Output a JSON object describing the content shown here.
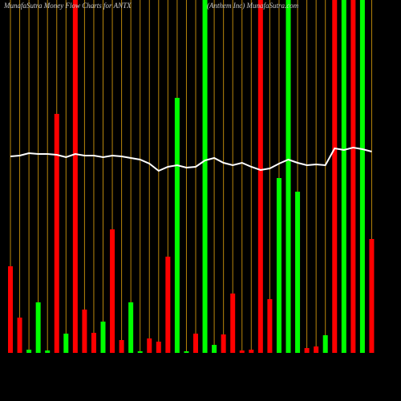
{
  "chart_data": {
    "type": "bar",
    "title": "MunafaSutra  Money Flow  Charts for ANTX",
    "subtitle": "(Anthem Inc) MunafaSutra.com",
    "ylim": [
      0,
      440
    ],
    "grid": true,
    "grid_color": "#b8860b",
    "series": [
      {
        "type": "bar",
        "values": [
          108,
          44,
          4,
          63,
          3,
          298,
          24,
          440,
          54,
          25,
          39,
          154,
          16,
          63,
          2,
          18,
          14,
          120,
          318,
          2,
          24,
          440,
          10,
          23,
          74,
          3,
          4,
          440,
          67,
          218,
          440,
          201,
          6,
          8,
          22,
          440,
          440,
          440,
          440,
          142
        ],
        "colors": [
          "#ff0000",
          "#ff0000",
          "#00ff00",
          "#00ff00",
          "#00ff00",
          "#ff0000",
          "#00ff00",
          "#ff0000",
          "#ff0000",
          "#ff0000",
          "#00ff00",
          "#ff0000",
          "#ff0000",
          "#00ff00",
          "#00ff00",
          "#ff0000",
          "#ff0000",
          "#ff0000",
          "#00ff00",
          "#00ff00",
          "#ff0000",
          "#00ff00",
          "#00ff00",
          "#ff0000",
          "#ff0000",
          "#ff0000",
          "#ff0000",
          "#ff0000",
          "#ff0000",
          "#00ff00",
          "#00ff00",
          "#00ff00",
          "#ff0000",
          "#ff0000",
          "#00ff00",
          "#ff0000",
          "#00ff00",
          "#ff0000",
          "#00ff00",
          "#ff0000"
        ]
      },
      {
        "type": "line",
        "color": "#ffffff",
        "values": [
          245,
          246,
          249,
          248,
          248,
          247,
          244,
          248,
          246,
          246,
          244,
          246,
          245,
          243,
          241,
          236,
          227,
          232,
          234,
          231,
          232,
          240,
          243,
          237,
          234,
          237,
          232,
          228,
          230,
          236,
          241,
          237,
          234,
          235,
          234,
          255,
          253,
          256,
          254,
          251
        ]
      }
    ]
  }
}
